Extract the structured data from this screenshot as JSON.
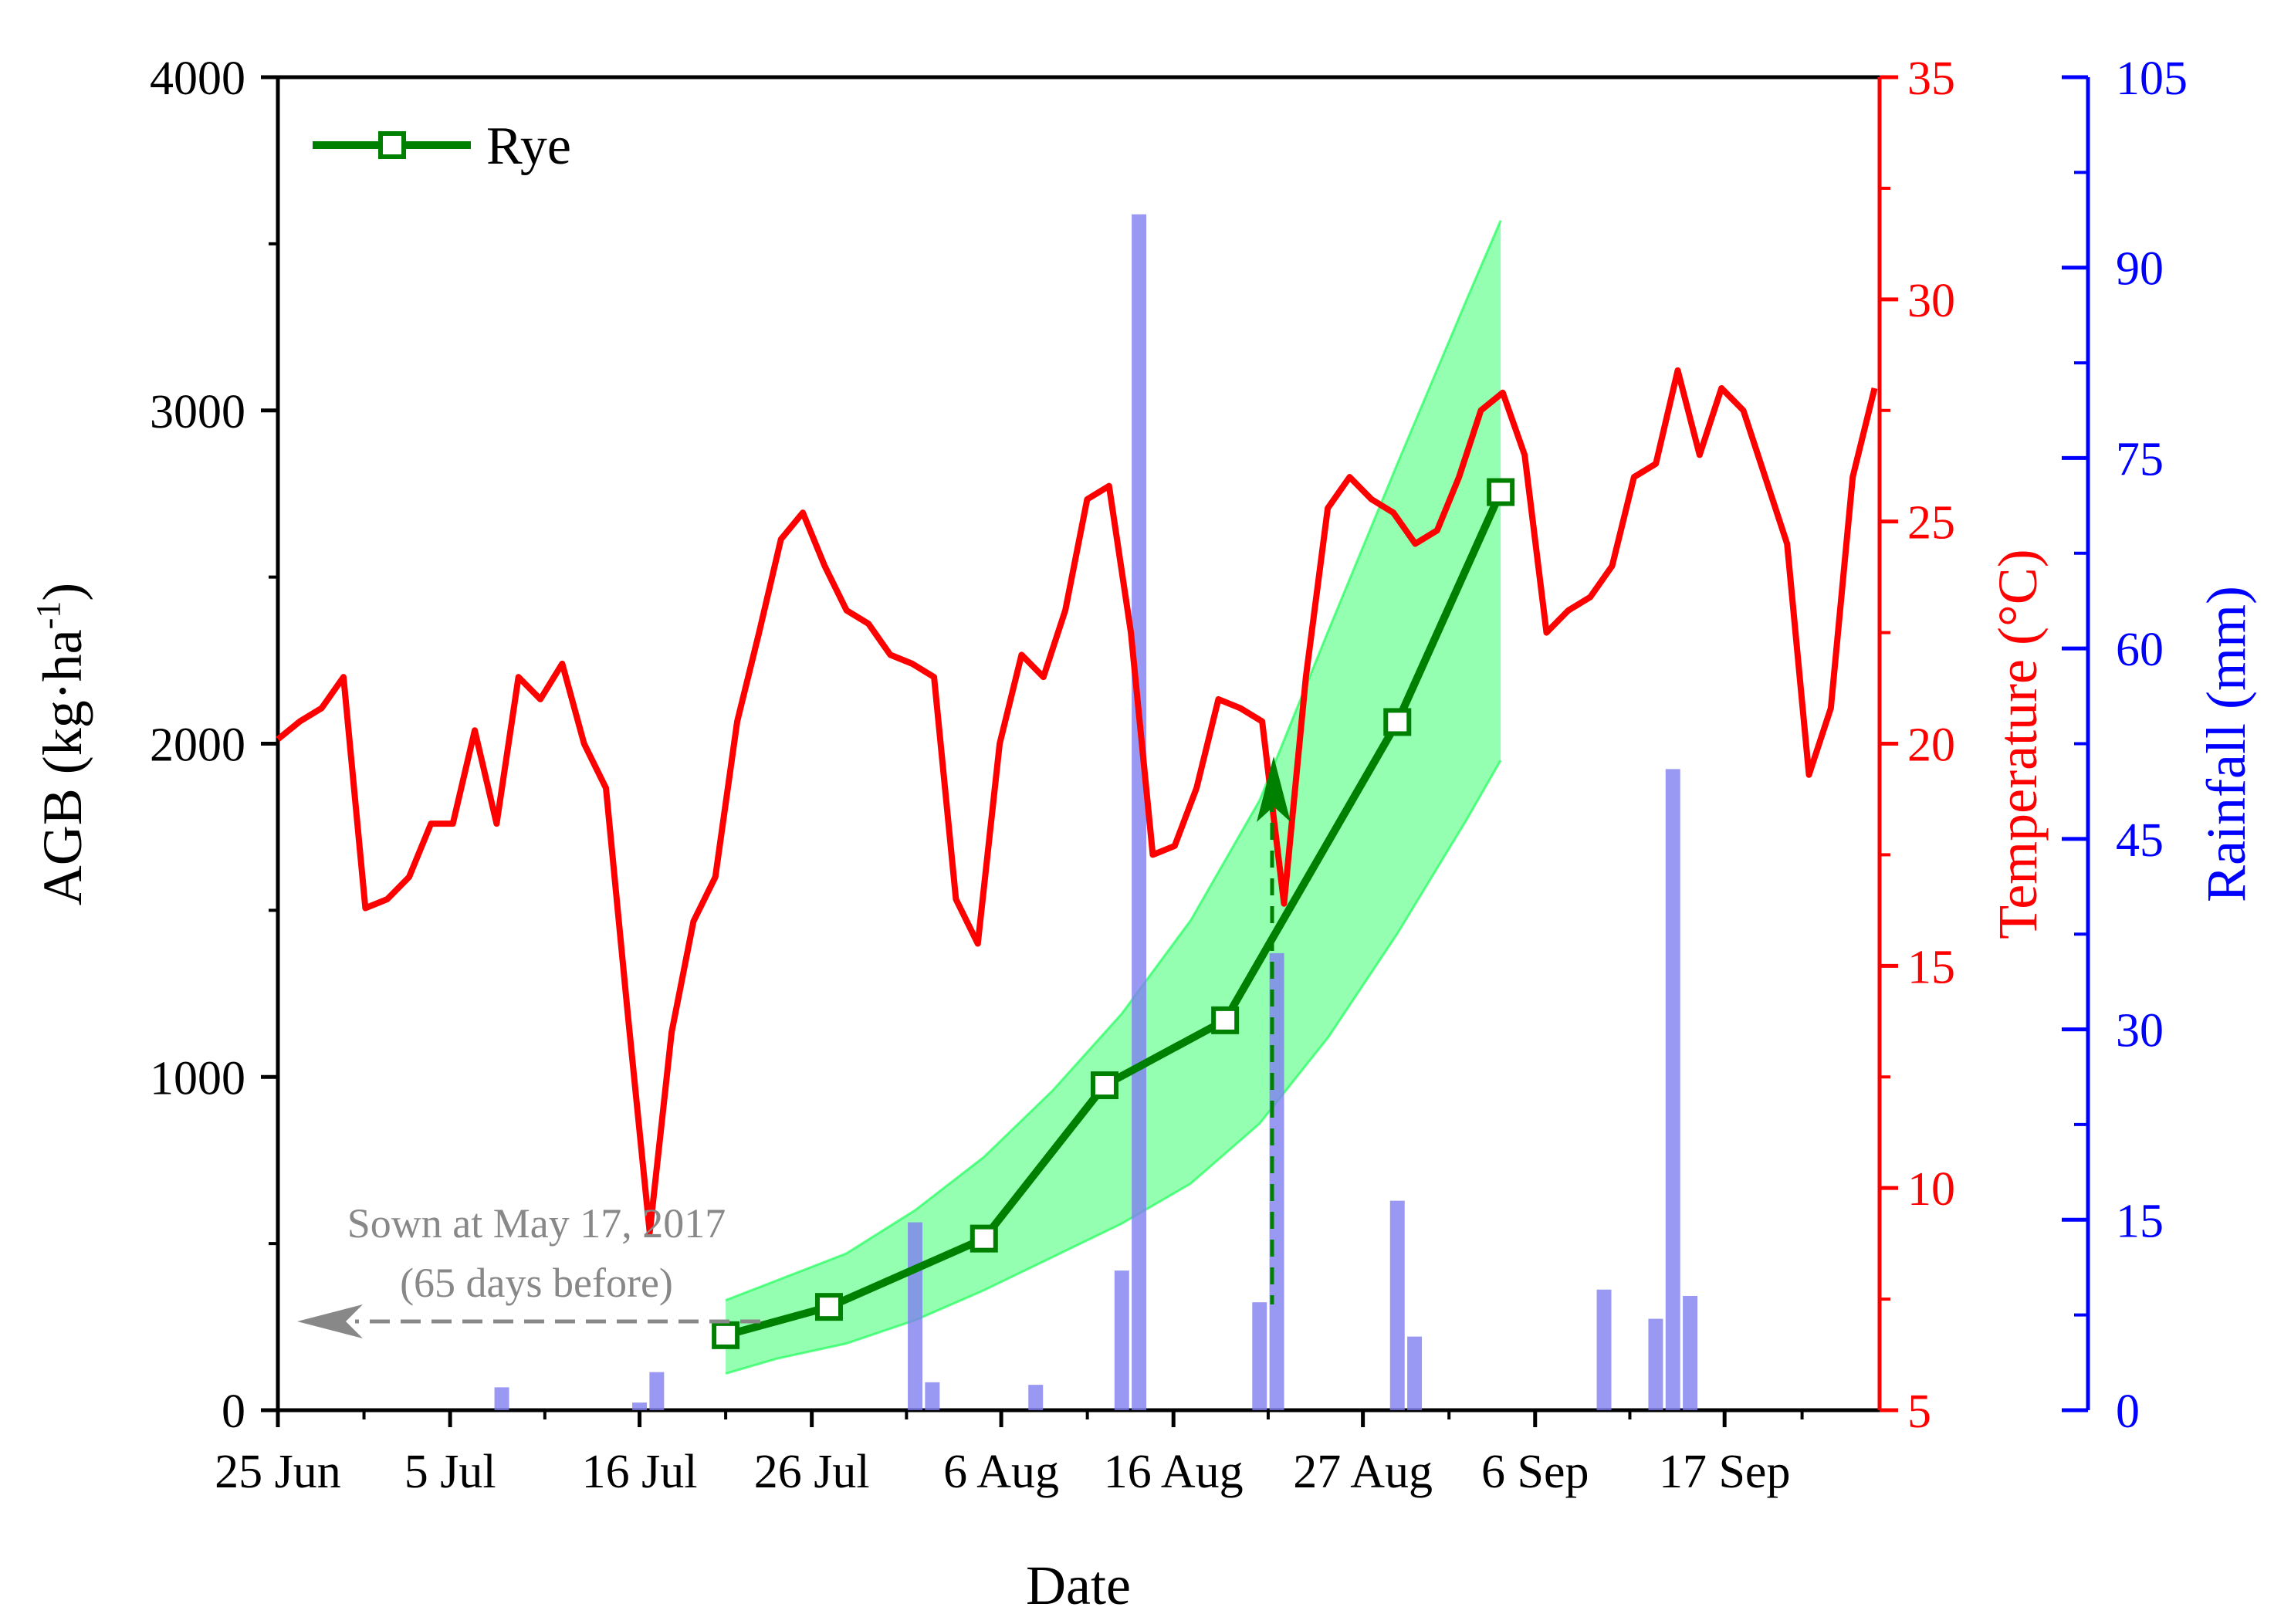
{
  "chart_data": {
    "type": "line",
    "xlabel": "Date",
    "x_ticks": [
      "25 Jun",
      "5 Jul",
      "16 Jul",
      "26 Jul",
      "6 Aug",
      "16 Aug",
      "27 Aug",
      "6 Sep",
      "17 Sep"
    ],
    "x_tick_dates": [
      "2017-06-25",
      "2017-07-05",
      "2017-07-16",
      "2017-07-26",
      "2017-08-06",
      "2017-08-16",
      "2017-08-27",
      "2017-09-06",
      "2017-09-17"
    ],
    "x_range": [
      "2017-06-25",
      "2017-09-26"
    ],
    "left_axis": {
      "label": "AGB (kg·ha⁻¹)",
      "label_main": "AGB (kg·ha",
      "label_sup": "-1",
      "label_end": ")",
      "ylim": [
        0,
        4000
      ],
      "ticks": [
        "0",
        "1000",
        "2000",
        "3000",
        "4000"
      ],
      "color": "#000000"
    },
    "temp_axis": {
      "label": "Temperature (°C)",
      "ylim": [
        5,
        35
      ],
      "ticks": [
        "5",
        "10",
        "15",
        "20",
        "25",
        "30",
        "35"
      ],
      "color": "#ff0000"
    },
    "rain_axis": {
      "label": "Rainfall (mm)",
      "ylim": [
        0,
        105
      ],
      "ticks": [
        "0",
        "15",
        "30",
        "45",
        "60",
        "75",
        "90",
        "105"
      ],
      "color": "#0000ff"
    },
    "legend": {
      "label": "Rye",
      "placement": "top-left"
    },
    "agb_series": {
      "name": "Rye",
      "color": "#008000",
      "points": [
        {
          "date": "2017-07-21",
          "value": 225
        },
        {
          "date": "2017-07-27",
          "value": 310
        },
        {
          "date": "2017-08-05",
          "value": 515
        },
        {
          "date": "2017-08-12",
          "value": 975
        },
        {
          "date": "2017-08-19",
          "value": 1170
        },
        {
          "date": "2017-08-29",
          "value": 2065
        },
        {
          "date": "2017-09-04",
          "value": 2755
        }
      ]
    },
    "agb_band": {
      "color": "#00ff44",
      "x": [
        "2017-07-21",
        "2017-07-24",
        "2017-07-28",
        "2017-08-01",
        "2017-08-05",
        "2017-08-09",
        "2017-08-13",
        "2017-08-17",
        "2017-08-21",
        "2017-08-25",
        "2017-08-29",
        "2017-09-02",
        "2017-09-04"
      ],
      "upper": [
        330,
        390,
        470,
        600,
        760,
        960,
        1190,
        1470,
        1830,
        2340,
        2840,
        3330,
        3570
      ],
      "lower": [
        110,
        155,
        200,
        270,
        360,
        460,
        560,
        680,
        860,
        1120,
        1430,
        1770,
        1950
      ]
    },
    "temperature_series": {
      "color": "#ff0000",
      "start_date": "2017-06-25",
      "values": [
        20.1,
        20.5,
        20.8,
        21.5,
        16.3,
        16.5,
        17.0,
        18.2,
        18.2,
        20.3,
        18.2,
        21.5,
        21.0,
        21.8,
        20.0,
        19.0,
        13.9,
        9.0,
        13.5,
        16.0,
        17.0,
        20.5,
        22.5,
        24.6,
        25.2,
        24.0,
        23.0,
        22.7,
        22.0,
        21.8,
        21.5,
        16.5,
        15.5,
        20.0,
        22.0,
        21.5,
        23.0,
        25.5,
        25.8,
        22.5,
        17.5,
        17.7,
        19.0,
        21.0,
        20.8,
        20.5,
        16.4,
        21.5,
        25.3,
        26.0,
        25.5,
        25.2,
        24.5,
        24.8,
        26.0,
        27.5,
        27.9,
        26.5,
        22.5,
        23.0,
        23.3,
        24.0,
        26.0,
        26.3,
        28.4,
        26.5,
        28.0,
        27.5,
        26.0,
        24.5,
        19.3,
        20.8,
        26.0,
        28.0
      ],
      "x_offset_days": 0
    },
    "rainfall_bars": {
      "color": "#8080f0",
      "bars": [
        {
          "date": "2017-07-08",
          "mm": 1.8
        },
        {
          "date": "2017-07-16",
          "mm": 0.6
        },
        {
          "date": "2017-07-17",
          "mm": 3.0
        },
        {
          "date": "2017-08-01",
          "mm": 14.8
        },
        {
          "date": "2017-08-02",
          "mm": 2.2
        },
        {
          "date": "2017-08-08",
          "mm": 2.0
        },
        {
          "date": "2017-08-13",
          "mm": 11.0
        },
        {
          "date": "2017-08-14",
          "mm": 94.2
        },
        {
          "date": "2017-08-21",
          "mm": 8.5
        },
        {
          "date": "2017-08-22",
          "mm": 36.0
        },
        {
          "date": "2017-08-29",
          "mm": 16.5
        },
        {
          "date": "2017-08-30",
          "mm": 5.8
        },
        {
          "date": "2017-09-10",
          "mm": 9.5
        },
        {
          "date": "2017-09-13",
          "mm": 7.2
        },
        {
          "date": "2017-09-14",
          "mm": 50.5
        },
        {
          "date": "2017-09-15",
          "mm": 9.0
        }
      ]
    },
    "annotations": {
      "sown_line1": "Sown at May 17, 2017",
      "sown_line2": "(65 days before)"
    }
  }
}
